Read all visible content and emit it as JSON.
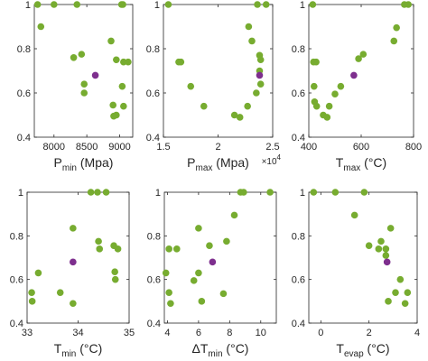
{
  "chart_data": [
    {
      "type": "scatter",
      "xlabel": "P",
      "xlabel_sub": "min",
      "xlabel_rest": " (Mpa)",
      "xlim": [
        7700,
        9200
      ],
      "ylim": [
        0.4,
        1.0
      ],
      "xticks": [
        {
          "v": 8000,
          "t": "8000"
        },
        {
          "v": 8500,
          "t": "8500"
        },
        {
          "v": 9000,
          "t": "9000"
        }
      ],
      "yticks": [
        {
          "v": 0.4,
          "t": "0.4"
        },
        {
          "v": 0.6,
          "t": "0.6"
        },
        {
          "v": 0.8,
          "t": "0.8"
        },
        {
          "v": 1.0,
          "t": "1"
        }
      ],
      "points": [
        [
          7750,
          1.0
        ],
        [
          8000,
          1.0
        ],
        [
          8350,
          1.0
        ],
        [
          9030,
          1.0
        ],
        [
          9050,
          1.0
        ],
        [
          7800,
          0.9
        ],
        [
          8300,
          0.76
        ],
        [
          8420,
          0.775
        ],
        [
          8460,
          0.64
        ],
        [
          8460,
          0.6
        ],
        [
          8870,
          0.835
        ],
        [
          8950,
          0.75
        ],
        [
          9060,
          0.74
        ],
        [
          9130,
          0.74
        ],
        [
          8900,
          0.545
        ],
        [
          8910,
          0.495
        ],
        [
          8950,
          0.5
        ],
        [
          9040,
          0.63
        ],
        [
          9060,
          0.54
        ]
      ],
      "highlight": [
        [
          8630,
          0.68
        ]
      ]
    },
    {
      "type": "scatter",
      "xlabel": "P",
      "xlabel_sub": "max",
      "xlabel_rest": " (Mpa)",
      "multiplier": "×10",
      "multiplier_exp": "4",
      "xlim": [
        1.5,
        2.5
      ],
      "ylim": [
        0.4,
        1.0
      ],
      "xticks": [
        {
          "v": 1.5,
          "t": "1.5"
        },
        {
          "v": 2.0,
          "t": "2"
        },
        {
          "v": 2.5,
          "t": "2.5"
        }
      ],
      "yticks": [
        {
          "v": 0.4,
          "t": "0.4"
        },
        {
          "v": 0.6,
          "t": "0.6"
        },
        {
          "v": 0.8,
          "t": "0.8"
        },
        {
          "v": 1.0,
          "t": "1"
        }
      ],
      "points": [
        [
          1.545,
          1.0
        ],
        [
          2.36,
          1.0
        ],
        [
          2.44,
          1.0
        ],
        [
          1.64,
          0.74
        ],
        [
          1.66,
          0.74
        ],
        [
          1.75,
          0.63
        ],
        [
          1.87,
          0.54
        ],
        [
          2.15,
          0.5
        ],
        [
          2.2,
          0.49
        ],
        [
          2.27,
          0.54
        ],
        [
          2.28,
          0.9
        ],
        [
          2.31,
          0.835
        ],
        [
          2.35,
          0.6
        ],
        [
          2.38,
          0.77
        ],
        [
          2.39,
          0.75
        ],
        [
          2.38,
          0.7
        ],
        [
          2.39,
          0.64
        ]
      ],
      "highlight": [
        [
          2.38,
          0.68
        ]
      ]
    },
    {
      "type": "scatter",
      "xlabel": "T",
      "xlabel_sub": "max",
      "xlabel_rest": " (°C)",
      "xlim": [
        400,
        800
      ],
      "ylim": [
        0.4,
        1.0
      ],
      "xticks": [
        {
          "v": 400,
          "t": "400"
        },
        {
          "v": 600,
          "t": "600"
        },
        {
          "v": 800,
          "t": "800"
        }
      ],
      "yticks": [
        {
          "v": 0.4,
          "t": "0.4"
        },
        {
          "v": 0.6,
          "t": "0.6"
        },
        {
          "v": 0.8,
          "t": "0.8"
        },
        {
          "v": 1.0,
          "t": "1"
        }
      ],
      "points": [
        [
          415,
          1.0
        ],
        [
          765,
          1.0
        ],
        [
          780,
          1.0
        ],
        [
          418,
          0.74
        ],
        [
          428,
          0.74
        ],
        [
          420,
          0.63
        ],
        [
          422,
          0.56
        ],
        [
          430,
          0.54
        ],
        [
          455,
          0.5
        ],
        [
          470,
          0.49
        ],
        [
          478,
          0.54
        ],
        [
          500,
          0.595
        ],
        [
          522,
          0.63
        ],
        [
          590,
          0.755
        ],
        [
          608,
          0.775
        ],
        [
          725,
          0.835
        ],
        [
          735,
          0.895
        ]
      ],
      "highlight": [
        [
          572,
          0.68
        ]
      ]
    },
    {
      "type": "scatter",
      "xlabel": "T",
      "xlabel_sub": "min",
      "xlabel_rest": " (°C)",
      "xlim": [
        33,
        35
      ],
      "ylim": [
        0.4,
        1.0
      ],
      "xticks": [
        {
          "v": 33,
          "t": "33"
        },
        {
          "v": 34,
          "t": "34"
        },
        {
          "v": 35,
          "t": "35"
        }
      ],
      "yticks": [
        {
          "v": 0.4,
          "t": "0.4"
        },
        {
          "v": 0.6,
          "t": "0.6"
        },
        {
          "v": 0.8,
          "t": "0.8"
        },
        {
          "v": 1.0,
          "t": "1"
        }
      ],
      "points": [
        [
          34.25,
          1.0
        ],
        [
          34.38,
          1.0
        ],
        [
          34.55,
          1.0
        ],
        [
          33.9,
          0.835
        ],
        [
          34.4,
          0.775
        ],
        [
          34.42,
          0.74
        ],
        [
          34.7,
          0.755
        ],
        [
          34.78,
          0.74
        ],
        [
          34.72,
          0.635
        ],
        [
          34.73,
          0.6
        ],
        [
          33.22,
          0.63
        ],
        [
          33.09,
          0.54
        ],
        [
          33.1,
          0.5
        ],
        [
          33.65,
          0.54
        ],
        [
          33.9,
          0.49
        ]
      ],
      "highlight": [
        [
          33.9,
          0.68
        ]
      ]
    },
    {
      "type": "scatter",
      "xlabel": "ΔT",
      "xlabel_sub": "min",
      "xlabel_rest": " (°C)",
      "xlim": [
        3.8,
        11
      ],
      "ylim": [
        0.4,
        1.0
      ],
      "xticks": [
        {
          "v": 4,
          "t": "4"
        },
        {
          "v": 6,
          "t": "6"
        },
        {
          "v": 8,
          "t": "8"
        },
        {
          "v": 10,
          "t": "10"
        }
      ],
      "yticks": [
        {
          "v": 0.4,
          "t": "0.4"
        },
        {
          "v": 0.6,
          "t": "0.6"
        },
        {
          "v": 0.8,
          "t": "0.8"
        },
        {
          "v": 1.0,
          "t": "1"
        }
      ],
      "points": [
        [
          8.7,
          1.0
        ],
        [
          8.9,
          1.0
        ],
        [
          10.6,
          1.0
        ],
        [
          8.3,
          0.895
        ],
        [
          7.8,
          0.775
        ],
        [
          6.7,
          0.755
        ],
        [
          6.0,
          0.835
        ],
        [
          4.1,
          0.74
        ],
        [
          4.6,
          0.74
        ],
        [
          3.9,
          0.63
        ],
        [
          4.1,
          0.54
        ],
        [
          4.2,
          0.49
        ],
        [
          6.0,
          0.63
        ],
        [
          5.7,
          0.595
        ],
        [
          6.2,
          0.5
        ],
        [
          7.6,
          0.535
        ]
      ],
      "highlight": [
        [
          6.9,
          0.68
        ]
      ]
    },
    {
      "type": "scatter",
      "xlabel": "T",
      "xlabel_sub": "evap",
      "xlabel_rest": " (°C)",
      "xlim": [
        -0.5,
        4.0
      ],
      "ylim": [
        0.4,
        1.0
      ],
      "xticks": [
        {
          "v": 0,
          "t": "0"
        },
        {
          "v": 2,
          "t": "2"
        },
        {
          "v": 4,
          "t": "4"
        }
      ],
      "yticks": [
        {
          "v": 0.4,
          "t": "0.4"
        },
        {
          "v": 0.6,
          "t": "0.6"
        },
        {
          "v": 0.8,
          "t": "0.8"
        },
        {
          "v": 1.0,
          "t": "1"
        }
      ],
      "points": [
        [
          -0.3,
          1.0
        ],
        [
          0.6,
          1.0
        ],
        [
          1.8,
          1.0
        ],
        [
          1.4,
          0.895
        ],
        [
          2.0,
          0.755
        ],
        [
          2.5,
          0.775
        ],
        [
          2.9,
          0.835
        ],
        [
          2.4,
          0.74
        ],
        [
          2.7,
          0.74
        ],
        [
          2.7,
          0.71
        ],
        [
          3.3,
          0.6
        ],
        [
          3.1,
          0.54
        ],
        [
          3.6,
          0.54
        ],
        [
          2.8,
          0.5
        ],
        [
          3.5,
          0.49
        ]
      ],
      "highlight": [
        [
          2.75,
          0.68
        ]
      ]
    }
  ],
  "colors": {
    "points": "#77ac30",
    "highlight": "#7e2f8e",
    "axis": "#262626"
  }
}
